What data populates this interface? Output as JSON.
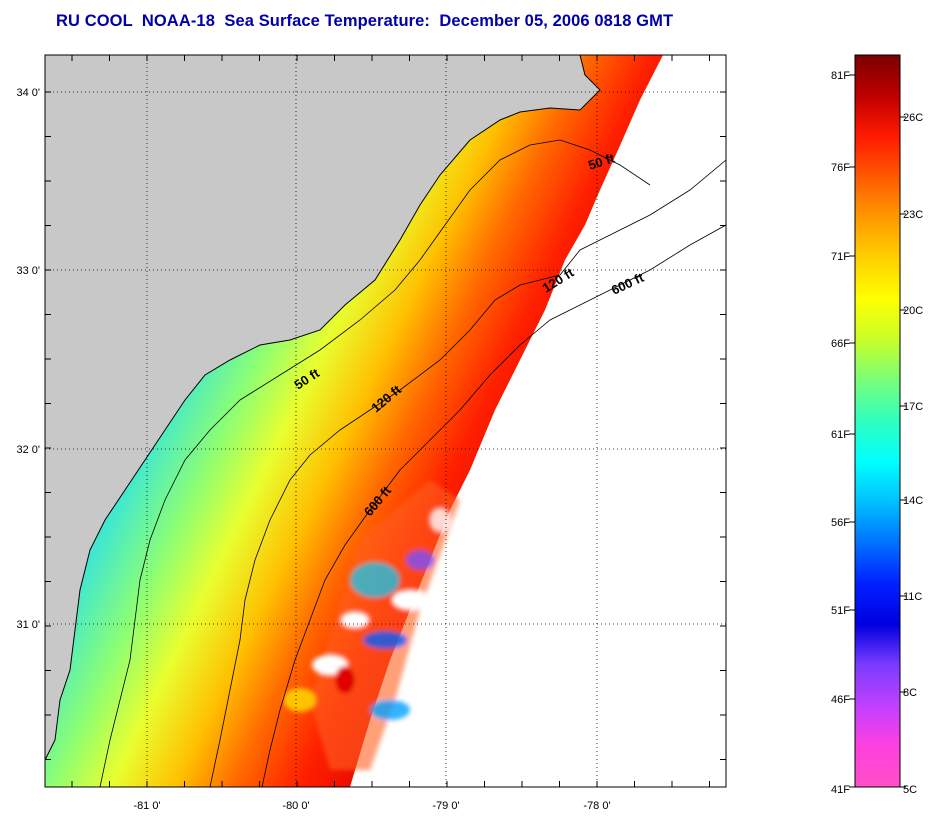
{
  "title": "RU COOL  NOAA-18  Sea Surface Temperature:  December 05, 2006 0818 GMT",
  "colors": {
    "title": "#0000a8",
    "land": "#c8c8c8",
    "missing": "#ffffff",
    "frame": "#000000"
  },
  "map": {
    "longitudes": [
      -81,
      -80,
      -79,
      -78
    ],
    "latitudes": [
      34,
      33,
      32,
      31
    ],
    "lon_labels": [
      "-81 0'",
      "-80 0'",
      "-79 0'",
      "-78 0'"
    ],
    "lat_labels": [
      "34 0'",
      "33 0'",
      "32 0'",
      "31 0'"
    ],
    "contours": [
      {
        "name": "50-ft-label-north",
        "text": "50 ft"
      },
      {
        "name": "50-ft-label-south",
        "text": "50 ft"
      },
      {
        "name": "120-ft-label-north",
        "text": "120 ft"
      },
      {
        "name": "120-ft-label-south",
        "text": "120 ft"
      },
      {
        "name": "600-ft-label-north",
        "text": "600 ft"
      },
      {
        "name": "600-ft-label-south",
        "text": "600 ft"
      }
    ]
  },
  "colorbar": {
    "fahrenheit_labels": [
      "81F",
      "76F",
      "71F",
      "66F",
      "61F",
      "56F",
      "51F",
      "46F",
      "41F"
    ],
    "celsius_labels": [
      "26C",
      "23C",
      "20C",
      "17C",
      "14C",
      "11C",
      "8C",
      "5C"
    ],
    "gradient_stops": [
      "#7a0000",
      "#c00000",
      "#ff1a00",
      "#ff5a00",
      "#ff9a00",
      "#ffd000",
      "#ffff00",
      "#c8ff28",
      "#78ff78",
      "#30ffc0",
      "#00ffff",
      "#00c0ff",
      "#0070ff",
      "#0020ff",
      "#0000e0",
      "#7a3cff",
      "#c040ff",
      "#ff40e0",
      "#ff50c8"
    ]
  }
}
